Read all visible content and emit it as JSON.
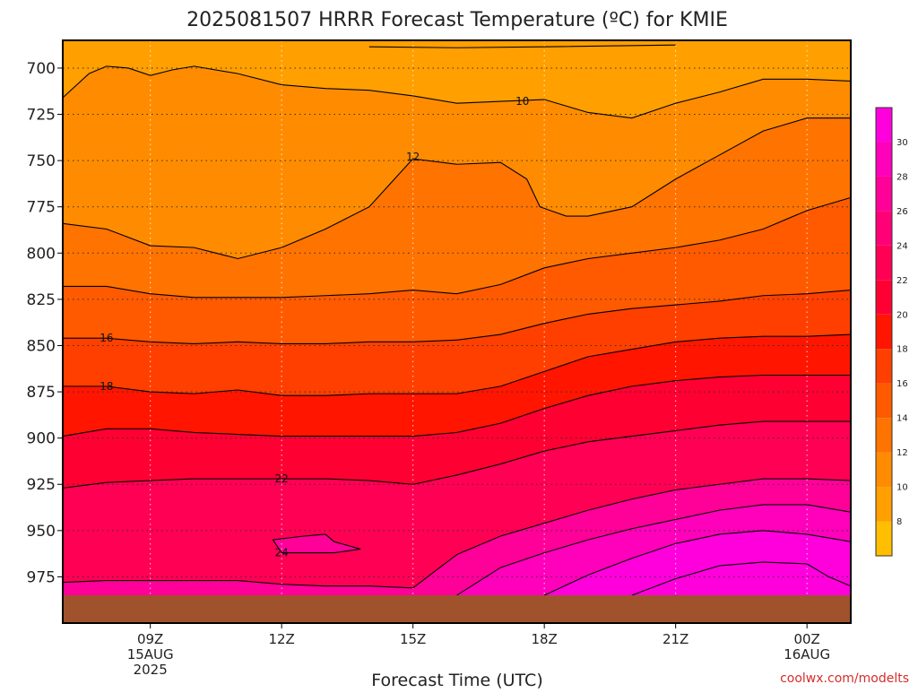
{
  "chart_data": {
    "type": "contour",
    "title": "2025081507 HRRR Forecast Temperature (ºC) for KMIE",
    "xlabel": "Forecast Time (UTC)",
    "ylabel": "",
    "y_axis": "pressure (hPa), inverted",
    "ylim": [
      1000,
      685
    ],
    "y_ticks": [
      "700",
      "725",
      "750",
      "775",
      "800",
      "825",
      "850",
      "875",
      "900",
      "925",
      "950",
      "975"
    ],
    "x_ticks": [
      {
        "hour": 9,
        "lines": [
          "09Z",
          "15AUG",
          "2025"
        ]
      },
      {
        "hour": 12,
        "lines": [
          "12Z"
        ]
      },
      {
        "hour": 15,
        "lines": [
          "15Z"
        ]
      },
      {
        "hour": 18,
        "lines": [
          "18Z"
        ]
      },
      {
        "hour": 21,
        "lines": [
          "21Z"
        ]
      },
      {
        "hour": 24,
        "lines": [
          "00Z",
          "16AUG"
        ]
      }
    ],
    "xlim": [
      7,
      25
    ],
    "grid": true,
    "colorbar": {
      "position": "right",
      "levels": [
        8,
        10,
        12,
        14,
        16,
        18,
        20,
        22,
        24,
        26,
        28,
        30
      ],
      "labels": [
        "8",
        "10",
        "12",
        "14",
        "16",
        "18",
        "20",
        "22",
        "24",
        "26",
        "28",
        "30"
      ],
      "colors": [
        "#ffbe00",
        "#ff9f00",
        "#ff8c00",
        "#ff7300",
        "#ff5a00",
        "#ff3f00",
        "#ff1500",
        "#ff0033",
        "#ff0055",
        "#ff0077",
        "#ff0099",
        "#ff00bb",
        "#ff00dd"
      ]
    },
    "contours": [
      {
        "level": 10,
        "label": "10",
        "label_at": [
          17.5,
          718
        ],
        "points": [
          [
            14,
            688.5
          ],
          [
            16,
            689
          ],
          [
            18,
            688.5
          ],
          [
            21,
            687.5
          ]
        ]
      },
      {
        "level": 10,
        "label": "",
        "points": [
          [
            7,
            716
          ],
          [
            7.6,
            703
          ],
          [
            8,
            699
          ],
          [
            8.5,
            700
          ],
          [
            9,
            704
          ],
          [
            9.5,
            701
          ],
          [
            10,
            699
          ],
          [
            11,
            703
          ],
          [
            12,
            709
          ],
          [
            13,
            711
          ],
          [
            14,
            712
          ],
          [
            15,
            715
          ],
          [
            16,
            719
          ],
          [
            17,
            718
          ],
          [
            18,
            717
          ],
          [
            19,
            724
          ],
          [
            20,
            727
          ],
          [
            21,
            719
          ],
          [
            22,
            713
          ],
          [
            23,
            706
          ],
          [
            24,
            706
          ],
          [
            25,
            707
          ]
        ]
      },
      {
        "level": 12,
        "label": "12",
        "label_at": [
          15,
          748
        ],
        "points": [
          [
            7,
            784
          ],
          [
            8,
            787
          ],
          [
            9,
            796
          ],
          [
            10,
            797
          ],
          [
            11,
            803
          ],
          [
            12,
            797
          ],
          [
            13,
            787
          ],
          [
            14,
            775
          ],
          [
            14.5,
            762
          ],
          [
            15,
            749
          ],
          [
            16,
            752
          ],
          [
            17,
            751
          ],
          [
            17.6,
            760
          ],
          [
            17.9,
            775
          ],
          [
            18.5,
            780
          ],
          [
            19,
            780
          ],
          [
            20,
            775
          ],
          [
            21,
            760
          ],
          [
            22,
            747
          ],
          [
            23,
            734
          ],
          [
            24,
            727
          ],
          [
            25,
            727
          ]
        ]
      },
      {
        "level": 14,
        "label": "",
        "points": [
          [
            7,
            818
          ],
          [
            8,
            818
          ],
          [
            9,
            822
          ],
          [
            10,
            824
          ],
          [
            11,
            824
          ],
          [
            12,
            824
          ],
          [
            13,
            823
          ],
          [
            14,
            822
          ],
          [
            15,
            820
          ],
          [
            16,
            822
          ],
          [
            17,
            817
          ],
          [
            18,
            808
          ],
          [
            19,
            803
          ],
          [
            20,
            800
          ],
          [
            21,
            797
          ],
          [
            22,
            793
          ],
          [
            23,
            787
          ],
          [
            24,
            777
          ],
          [
            25,
            770
          ]
        ]
      },
      {
        "level": 16,
        "label": "16",
        "label_at": [
          8,
          846
        ],
        "points": [
          [
            7,
            846
          ],
          [
            8,
            846
          ],
          [
            9,
            848
          ],
          [
            10,
            849
          ],
          [
            11,
            848
          ],
          [
            12,
            849
          ],
          [
            13,
            849
          ],
          [
            14,
            848
          ],
          [
            15,
            848
          ],
          [
            16,
            847
          ],
          [
            17,
            844
          ],
          [
            18,
            838
          ],
          [
            19,
            833
          ],
          [
            20,
            830
          ],
          [
            21,
            828
          ],
          [
            22,
            826
          ],
          [
            23,
            823
          ],
          [
            24,
            822
          ],
          [
            25,
            820
          ]
        ]
      },
      {
        "level": 18,
        "label": "18",
        "label_at": [
          8,
          872
        ],
        "points": [
          [
            7,
            872
          ],
          [
            8,
            872
          ],
          [
            9,
            875
          ],
          [
            10,
            876
          ],
          [
            11,
            874
          ],
          [
            12,
            877
          ],
          [
            13,
            877
          ],
          [
            14,
            876
          ],
          [
            15,
            876
          ],
          [
            16,
            876
          ],
          [
            17,
            872
          ],
          [
            18,
            864
          ],
          [
            19,
            856
          ],
          [
            20,
            852
          ],
          [
            21,
            848
          ],
          [
            22,
            846
          ],
          [
            23,
            845
          ],
          [
            24,
            845
          ],
          [
            25,
            844
          ]
        ]
      },
      {
        "level": 20,
        "label": "",
        "points": [
          [
            7,
            899
          ],
          [
            8,
            895
          ],
          [
            9,
            895
          ],
          [
            10,
            897
          ],
          [
            11,
            898
          ],
          [
            12,
            899
          ],
          [
            13,
            899
          ],
          [
            14,
            899
          ],
          [
            15,
            899
          ],
          [
            16,
            897
          ],
          [
            17,
            892
          ],
          [
            18,
            884
          ],
          [
            19,
            877
          ],
          [
            20,
            872
          ],
          [
            21,
            869
          ],
          [
            22,
            867
          ],
          [
            23,
            866
          ],
          [
            24,
            866
          ],
          [
            25,
            866
          ]
        ]
      },
      {
        "level": 22,
        "label": "22",
        "label_at": [
          12,
          922
        ],
        "points": [
          [
            7,
            927
          ],
          [
            8,
            924
          ],
          [
            9,
            923
          ],
          [
            10,
            922
          ],
          [
            11,
            922
          ],
          [
            12,
            922
          ],
          [
            13,
            922
          ],
          [
            14,
            923
          ],
          [
            15,
            925
          ],
          [
            16,
            920
          ],
          [
            17,
            914
          ],
          [
            18,
            907
          ],
          [
            19,
            902
          ],
          [
            20,
            899
          ],
          [
            21,
            896
          ],
          [
            22,
            893
          ],
          [
            23,
            891
          ],
          [
            24,
            891
          ],
          [
            25,
            891
          ]
        ]
      },
      {
        "level": 24,
        "label": "24",
        "label_at": [
          12,
          962
        ],
        "points": [
          [
            11.8,
            955
          ],
          [
            12.5,
            953
          ],
          [
            13,
            952
          ],
          [
            13.2,
            956
          ],
          [
            13.8,
            960
          ],
          [
            13.2,
            962
          ],
          [
            12.5,
            962
          ],
          [
            12,
            962
          ]
        ]
      },
      {
        "level": 24,
        "label": "",
        "points": [
          [
            7,
            978
          ],
          [
            8,
            977
          ],
          [
            9,
            977
          ],
          [
            10,
            977
          ],
          [
            11,
            977
          ],
          [
            12,
            979
          ],
          [
            13,
            980
          ],
          [
            14,
            980
          ],
          [
            15,
            981
          ]
        ]
      },
      {
        "level": 24,
        "label": "",
        "points": [
          [
            15,
            981
          ],
          [
            15.5,
            972
          ],
          [
            16,
            963
          ],
          [
            17,
            953
          ],
          [
            18,
            946
          ],
          [
            19,
            939
          ],
          [
            20,
            933
          ],
          [
            21,
            928
          ],
          [
            22,
            925
          ],
          [
            23,
            922
          ],
          [
            24,
            922
          ],
          [
            25,
            923
          ]
        ]
      },
      {
        "level": 26,
        "label": "",
        "points": [
          [
            16,
            985
          ],
          [
            17,
            970
          ],
          [
            18,
            962
          ],
          [
            19,
            955
          ],
          [
            20,
            949
          ],
          [
            21,
            944
          ],
          [
            22,
            939
          ],
          [
            23,
            936
          ],
          [
            24,
            936
          ],
          [
            25,
            940
          ]
        ]
      },
      {
        "level": 28,
        "label": "",
        "points": [
          [
            18,
            985
          ],
          [
            19,
            974
          ],
          [
            20,
            965
          ],
          [
            21,
            957
          ],
          [
            22,
            952
          ],
          [
            23,
            950
          ],
          [
            24,
            952
          ],
          [
            25,
            956
          ]
        ]
      },
      {
        "level": 30,
        "label": "",
        "points": [
          [
            20,
            985
          ],
          [
            21,
            976
          ],
          [
            22,
            969
          ],
          [
            23,
            967
          ],
          [
            24,
            968
          ],
          [
            24.5,
            975
          ],
          [
            25,
            980
          ]
        ]
      }
    ],
    "fill_order": [
      {
        "level": 10,
        "color_index": 1
      },
      {
        "level": 12,
        "color_index": 2
      },
      {
        "level": 14,
        "color_index": 3
      },
      {
        "level": 16,
        "color_index": 4
      },
      {
        "level": 18,
        "color_index": 5
      },
      {
        "level": 20,
        "color_index": 6
      },
      {
        "level": 22,
        "color_index": 7
      },
      {
        "level": 24,
        "color_index": 8
      },
      {
        "level": 26,
        "color_index": 9
      },
      {
        "level": 28,
        "color_index": 10
      },
      {
        "level": 30,
        "color_index": 11
      }
    ],
    "ground": {
      "color": "#a0522d",
      "pressure_top": 985
    }
  },
  "credit": "coolwx.com/modelts"
}
